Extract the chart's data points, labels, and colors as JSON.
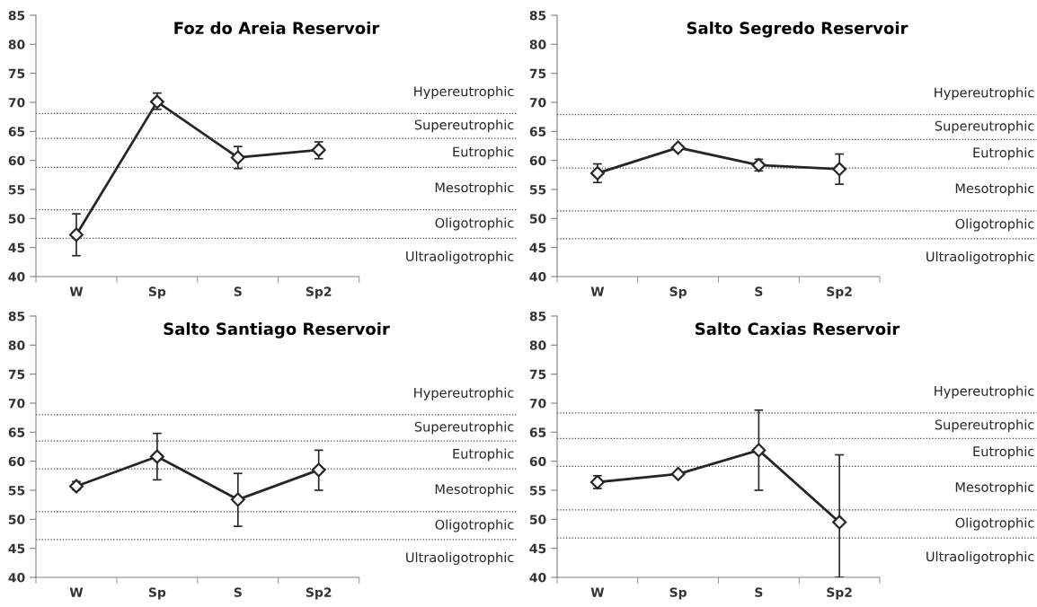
{
  "chart_data": [
    {
      "type": "line",
      "title": "Foz do Areia Reservoir",
      "categories": [
        "W",
        "Sp",
        "S",
        "Sp2"
      ],
      "series": [
        {
          "color": "#262626",
          "values": [
            47.2,
            70.1,
            60.5,
            61.8
          ],
          "errors": [
            [
              43.6,
              50.8
            ],
            [
              68.8,
              71.6
            ],
            [
              58.6,
              62.4
            ],
            [
              60.3,
              63.2
            ]
          ]
        }
      ],
      "ylim": [
        40,
        85
      ],
      "yticks": [
        40,
        45,
        50,
        55,
        60,
        65,
        70,
        75,
        80,
        85
      ],
      "marker": "diamond",
      "line_style": "solid",
      "ref_lines": [
        {
          "axis": "y",
          "value": 68.1,
          "line_style": "dotted"
        },
        {
          "axis": "y",
          "value": 63.8,
          "line_style": "dotted"
        },
        {
          "axis": "y",
          "value": 58.8,
          "line_style": "dotted"
        },
        {
          "axis": "y",
          "value": 51.5,
          "line_style": "dotted"
        },
        {
          "axis": "y",
          "value": 46.6,
          "line_style": "dotted"
        }
      ],
      "annotations": [
        "Hypereutrophic",
        "Supereutrophic",
        "Eutrophic",
        "Mesotrophic",
        "Oligotrophic",
        "Ultraoligotrophic"
      ]
    },
    {
      "type": "line",
      "title": "Salto Segredo Reservoir",
      "categories": [
        "W",
        "Sp",
        "S",
        "Sp2"
      ],
      "series": [
        {
          "color": "#262626",
          "values": [
            57.8,
            62.2,
            59.2,
            58.5
          ],
          "errors": [
            [
              56.2,
              59.4
            ],
            null,
            [
              58.2,
              60.2
            ],
            [
              55.9,
              61.1
            ]
          ]
        }
      ],
      "ylim": [
        40,
        85
      ],
      "yticks": [
        40,
        45,
        50,
        55,
        60,
        65,
        70,
        75,
        80,
        85
      ],
      "marker": "diamond",
      "line_style": "solid",
      "ref_lines": [
        {
          "axis": "y",
          "value": 67.9,
          "line_style": "dotted"
        },
        {
          "axis": "y",
          "value": 63.6,
          "line_style": "dotted"
        },
        {
          "axis": "y",
          "value": 58.7,
          "line_style": "dotted"
        },
        {
          "axis": "y",
          "value": 51.3,
          "line_style": "dotted"
        },
        {
          "axis": "y",
          "value": 46.5,
          "line_style": "dotted"
        }
      ],
      "annotations": [
        "Hypereutrophic",
        "Supereutrophic",
        "Eutrophic",
        "Mesotrophic",
        "Oligotrophic",
        "Ultraoligotrophic"
      ]
    },
    {
      "type": "line",
      "title": "Salto Santiago Reservoir",
      "categories": [
        "W",
        "Sp",
        "S",
        "Sp2"
      ],
      "series": [
        {
          "color": "#262626",
          "values": [
            55.7,
            60.8,
            53.4,
            58.5
          ],
          "errors": [
            [
              55.1,
              56.5
            ],
            [
              56.8,
              64.8
            ],
            [
              48.8,
              57.9
            ],
            [
              55.0,
              61.9
            ]
          ]
        }
      ],
      "ylim": [
        40,
        85
      ],
      "yticks": [
        40,
        45,
        50,
        55,
        60,
        65,
        70,
        75,
        80,
        85
      ],
      "marker": "diamond",
      "line_style": "solid",
      "ref_lines": [
        {
          "axis": "y",
          "value": 68.0,
          "line_style": "dotted"
        },
        {
          "axis": "y",
          "value": 63.5,
          "line_style": "dotted"
        },
        {
          "axis": "y",
          "value": 58.7,
          "line_style": "dotted"
        },
        {
          "axis": "y",
          "value": 51.3,
          "line_style": "dotted"
        },
        {
          "axis": "y",
          "value": 46.5,
          "line_style": "dotted"
        }
      ],
      "annotations": [
        "Hypereutrophic",
        "Supereutrophic",
        "Eutrophic",
        "Mesotrophic",
        "Oligotrophic",
        "Ultraoligotrophic"
      ]
    },
    {
      "type": "line",
      "title": "Salto Caxias Reservoir",
      "categories": [
        "W",
        "Sp",
        "S",
        "Sp2"
      ],
      "series": [
        {
          "color": "#262626",
          "values": [
            56.4,
            57.8,
            61.9,
            49.5
          ],
          "errors": [
            [
              55.3,
              57.5
            ],
            null,
            [
              55.0,
              68.8
            ],
            [
              40,
              61.1
            ]
          ]
        }
      ],
      "ylim": [
        40,
        85
      ],
      "yticks": [
        40,
        45,
        50,
        55,
        60,
        65,
        70,
        75,
        80,
        85
      ],
      "marker": "diamond",
      "line_style": "solid",
      "ref_lines": [
        {
          "axis": "y",
          "value": 68.3,
          "line_style": "dotted"
        },
        {
          "axis": "y",
          "value": 63.9,
          "line_style": "dotted"
        },
        {
          "axis": "y",
          "value": 59.1,
          "line_style": "dotted"
        },
        {
          "axis": "y",
          "value": 51.6,
          "line_style": "dotted"
        },
        {
          "axis": "y",
          "value": 46.8,
          "line_style": "dotted"
        }
      ],
      "annotations": [
        "Hypereutrophic",
        "Supereutrophic",
        "Eutrophic",
        "Mesotrophic",
        "Oligotrophic",
        "Ultraoligotrophic"
      ]
    }
  ]
}
